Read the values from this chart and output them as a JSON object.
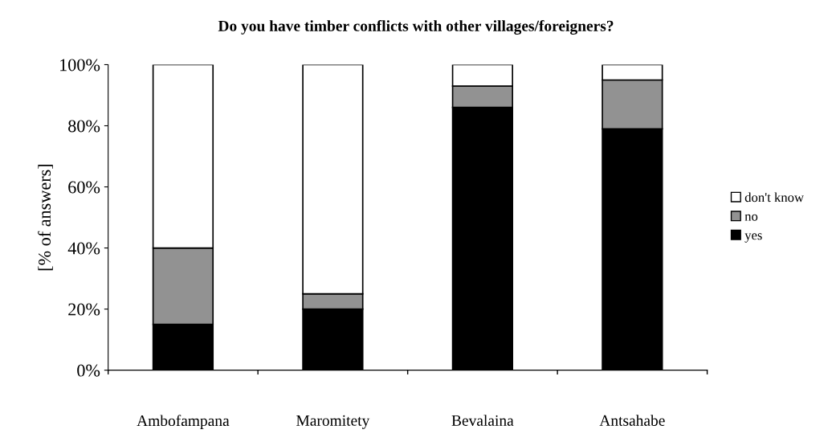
{
  "chart_data": {
    "type": "bar",
    "stacked": true,
    "title": "Do you have timber conflicts with other villages/foreigners?",
    "ylabel": "[% of answers]",
    "categories": [
      "Ambofampana",
      "Maromitety",
      "Bevalaina",
      "Antsahabe"
    ],
    "series": [
      {
        "name": "yes",
        "color": "#000000",
        "values": [
          15,
          20,
          86,
          79
        ]
      },
      {
        "name": "no",
        "color": "#929292",
        "values": [
          25,
          5,
          7,
          16
        ]
      },
      {
        "name": "don't know",
        "color": "#ffffff",
        "values": [
          60,
          75,
          7,
          5
        ]
      }
    ],
    "ylim": [
      0,
      100
    ],
    "yticks": [
      {
        "value": 0,
        "label": "0%"
      },
      {
        "value": 20,
        "label": "20%"
      },
      {
        "value": 40,
        "label": "40%"
      },
      {
        "value": 60,
        "label": "60%"
      },
      {
        "value": 80,
        "label": "80%"
      },
      {
        "value": 100,
        "label": "100%"
      }
    ],
    "grid": false,
    "legend": "right"
  }
}
